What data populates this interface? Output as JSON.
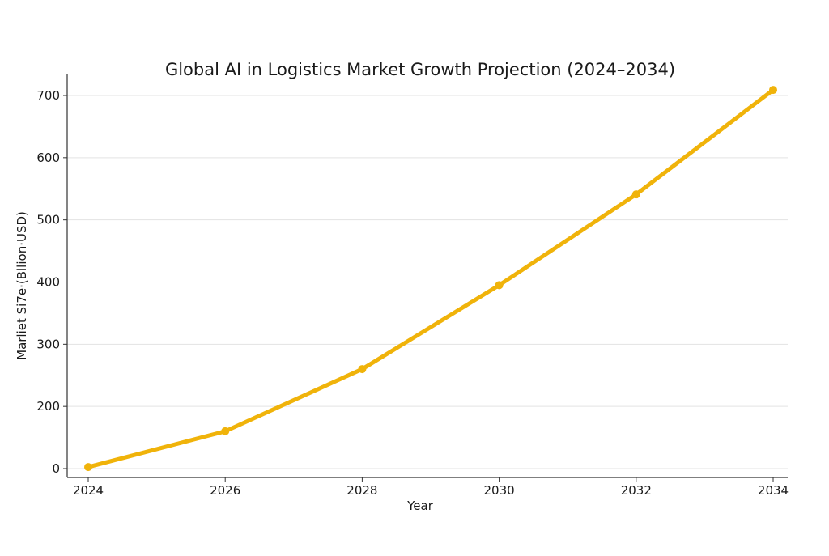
{
  "chart_data": {
    "type": "line",
    "title": "Global AI in Logistics Market Growth Projection (2024–2034)",
    "xlabel": "Year",
    "ylabel": "Marliet Si7e·(Bllion·USD)",
    "x": [
      2024,
      2026,
      2028,
      2030,
      2032,
      2034
    ],
    "x_ticks": [
      "2024",
      "2026",
      "2028",
      "2030",
      "2032",
      "2034"
    ],
    "y_ticks": [
      "0",
      "200",
      "300",
      "400",
      "500",
      "600",
      "700"
    ],
    "series": [
      {
        "values": [
          5,
          120,
          260,
          395,
          541,
          709
        ],
        "color": "#f0b30a",
        "marker": "circle"
      }
    ],
    "grid": "horizontal",
    "legend": "none"
  }
}
